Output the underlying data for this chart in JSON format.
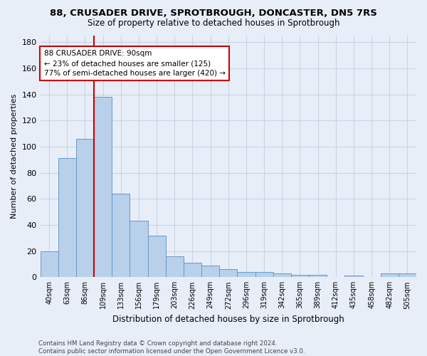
{
  "title_line1": "88, CRUSADER DRIVE, SPROTBROUGH, DONCASTER, DN5 7RS",
  "title_line2": "Size of property relative to detached houses in Sprotbrough",
  "xlabel": "Distribution of detached houses by size in Sprotbrough",
  "ylabel": "Number of detached properties",
  "bar_labels": [
    "40sqm",
    "63sqm",
    "86sqm",
    "109sqm",
    "133sqm",
    "156sqm",
    "179sqm",
    "203sqm",
    "226sqm",
    "249sqm",
    "272sqm",
    "296sqm",
    "319sqm",
    "342sqm",
    "365sqm",
    "389sqm",
    "412sqm",
    "435sqm",
    "458sqm",
    "482sqm",
    "505sqm"
  ],
  "bar_values": [
    20,
    91,
    106,
    138,
    64,
    43,
    32,
    16,
    11,
    9,
    6,
    4,
    4,
    3,
    2,
    2,
    0,
    1,
    0,
    3,
    3
  ],
  "bar_color": "#b8d0ea",
  "bar_edge_color": "#6699cc",
  "ylim": [
    0,
    185
  ],
  "yticks": [
    0,
    20,
    40,
    60,
    80,
    100,
    120,
    140,
    160,
    180
  ],
  "property_line_x": 2.5,
  "annotation_line1": "88 CRUSADER DRIVE: 90sqm",
  "annotation_line2": "← 23% of detached houses are smaller (125)",
  "annotation_line3": "77% of semi-detached houses are larger (420) →",
  "annotation_box_color": "white",
  "annotation_box_edge_color": "#cc0000",
  "vline_color": "#cc0000",
  "grid_color": "#c8d4e8",
  "background_color": "#e8eef8",
  "title1_fontsize": 9.5,
  "title2_fontsize": 8.5,
  "footnote": "Contains HM Land Registry data © Crown copyright and database right 2024.\nContains public sector information licensed under the Open Government Licence v3.0."
}
